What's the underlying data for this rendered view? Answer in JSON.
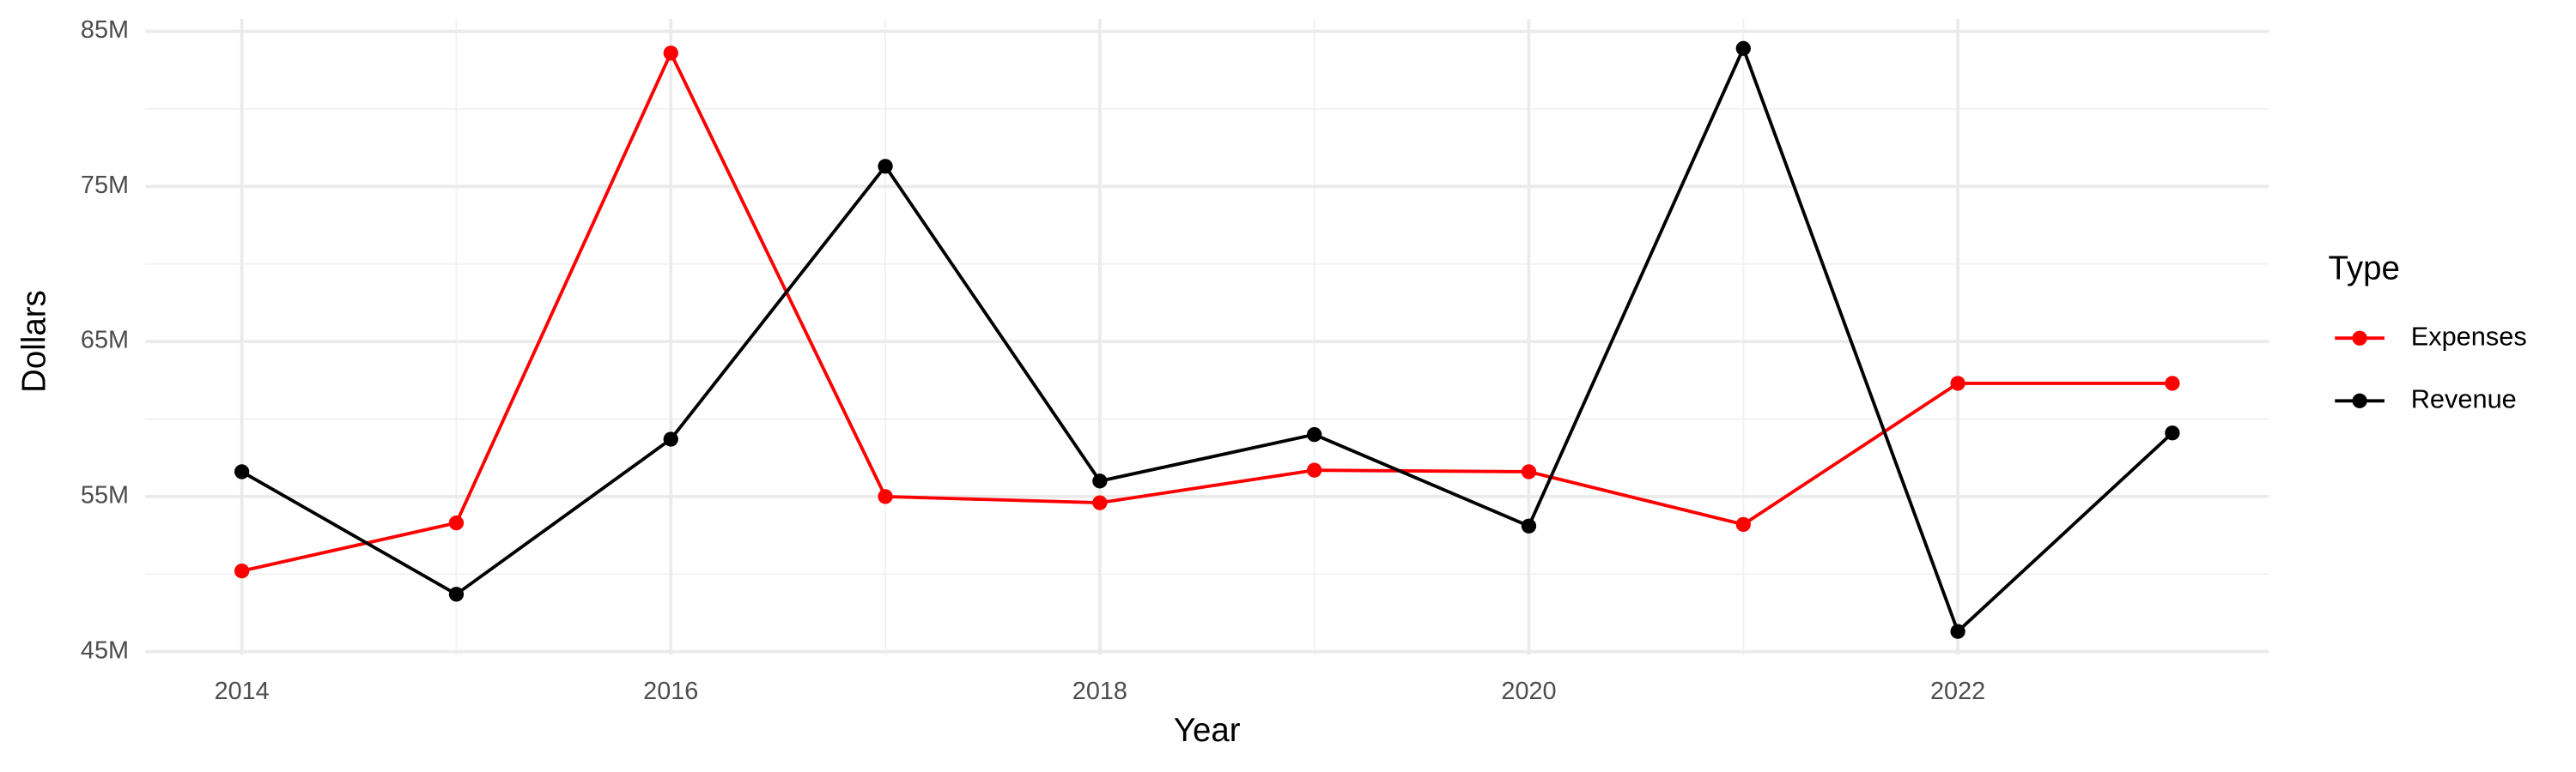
{
  "chart_data": {
    "type": "line",
    "x_label": "Year",
    "y_label": "Dollars",
    "legend_title": "Type",
    "legend_position": "right",
    "grid": true,
    "x": [
      2014,
      2015,
      2016,
      2017,
      2018,
      2019,
      2020,
      2021,
      2022,
      2023
    ],
    "series": [
      {
        "name": "Expenses",
        "color": "#ff0000",
        "values": [
          50200000,
          53300000,
          83600000,
          55000000,
          54600000,
          56700000,
          56600000,
          53200000,
          62300000,
          62300000
        ]
      },
      {
        "name": "Revenue",
        "color": "#000000",
        "values": [
          56600000,
          48700000,
          58700000,
          76300000,
          56000000,
          59000000,
          53100000,
          83900000,
          46300000,
          59100000
        ]
      }
    ],
    "xlim": [
      2013.55,
      2023.45
    ],
    "xticks": [
      2014,
      2016,
      2018,
      2020,
      2022
    ],
    "ylim": [
      44800000,
      85800000
    ],
    "yticks": [
      {
        "value": 45000000,
        "label": "45M"
      },
      {
        "value": 55000000,
        "label": "55M"
      },
      {
        "value": 65000000,
        "label": "65M"
      },
      {
        "value": 75000000,
        "label": "75M"
      },
      {
        "value": 85000000,
        "label": "85M"
      }
    ]
  }
}
